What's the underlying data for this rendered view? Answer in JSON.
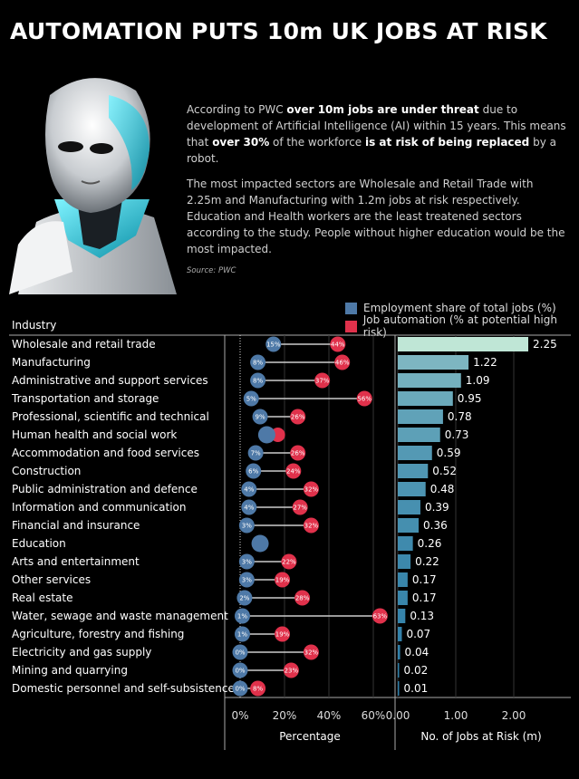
{
  "title": "AUTOMATION PUTS 10m UK JOBS AT RISK",
  "intro": {
    "p1": [
      {
        "t": "According to PWC ",
        "b": false
      },
      {
        "t": "over 10m jobs are under threat",
        "b": true
      },
      {
        "t": " due to development of Artificial Intelligence (AI) within 15 years.  This means that ",
        "b": false
      },
      {
        "t": "over 30%",
        "b": true
      },
      {
        "t": " of the workforce ",
        "b": false
      },
      {
        "t": "is at risk of being replaced",
        "b": true
      },
      {
        "t": " by a robot.",
        "b": false
      }
    ],
    "p2": "The most impacted sectors are Wholesale and Retail Trade with 2.25m and Manufacturing with 1.2m jobs at risk respectively.",
    "p3": "Education and Health workers are the least treatened sectors according to the study. People without higher education would be the most impacted.",
    "source": "Source: PWC"
  },
  "legend": {
    "employment": {
      "label": "Employment share of total jobs (%)",
      "color": "#4e79a7"
    },
    "automation": {
      "label": "Job automation (% at potential high risk)",
      "color": "#e0314b"
    }
  },
  "industry_header": "Industry",
  "chart_data": {
    "type": "dot-range + bar",
    "categories": [
      "Wholesale and retail trade",
      "Manufacturing",
      "Administrative and support services",
      "Transportation and storage",
      "Professional, scientific and technical",
      "Human health and social work",
      "Accommodation and food services",
      "Construction",
      "Public administration and defence",
      "Information and communication",
      "Financial and insurance",
      "Education",
      "Arts and entertainment",
      "Other services",
      "Real estate",
      "Water, sewage and waste management",
      "Agriculture, forestry and fishing",
      "Electricity and gas supply",
      "Mining and quarrying",
      "Domestic personnel and self-subsistence"
    ],
    "employment_share": [
      15,
      8,
      8,
      5,
      9,
      12,
      7,
      6,
      4,
      4,
      3,
      9,
      3,
      3,
      2,
      1,
      1,
      0,
      0,
      0
    ],
    "employment_share_labels": [
      "15%",
      "8%",
      "8%",
      "5%",
      "9%",
      "",
      "7%",
      "6%",
      "4%",
      "4%",
      "3%",
      "",
      "3%",
      "3%",
      "2%",
      "1%",
      "1%",
      "0%",
      "0%",
      "0%"
    ],
    "automation_pct": [
      44,
      46,
      37,
      56,
      26,
      17,
      26,
      24,
      32,
      27,
      32,
      9,
      22,
      19,
      28,
      63,
      19,
      32,
      23,
      8
    ],
    "automation_labels": [
      "44%",
      "46%",
      "37%",
      "56%",
      "26%",
      "",
      "26%",
      "24%",
      "32%",
      "27%",
      "32%",
      "",
      "22%",
      "19%",
      "28%",
      "63%",
      "19%",
      "32%",
      "23%",
      "8%"
    ],
    "jobs_at_risk_m": [
      2.25,
      1.22,
      1.09,
      0.95,
      0.78,
      0.73,
      0.59,
      0.52,
      0.48,
      0.39,
      0.36,
      0.26,
      0.22,
      0.17,
      0.17,
      0.13,
      0.07,
      0.04,
      0.02,
      0.01
    ],
    "jobs_labels": [
      "2.25",
      "1.22",
      "1.09",
      "0.95",
      "0.78",
      "0.73",
      "0.59",
      "0.52",
      "0.48",
      "0.39",
      "0.36",
      "0.26",
      "0.22",
      "0.17",
      "0.17",
      "0.13",
      "0.07",
      "0.04",
      "0.02",
      "0.01"
    ],
    "pct_axis": {
      "label": "Percentage",
      "ticks": [
        "0%",
        "20%",
        "40%",
        "60%"
      ],
      "tick_values": [
        0,
        20,
        40,
        60
      ],
      "xlim": [
        0,
        70
      ]
    },
    "jobs_axis": {
      "label": "No. of Jobs at Risk (m)",
      "ticks": [
        "0.00",
        "1.00",
        "2.00"
      ],
      "tick_values": [
        0,
        1,
        2
      ],
      "xlim": [
        0,
        2.55
      ]
    },
    "bar_colors": {
      "high": "#bfe6d6",
      "low": "#2e7ea8"
    }
  }
}
